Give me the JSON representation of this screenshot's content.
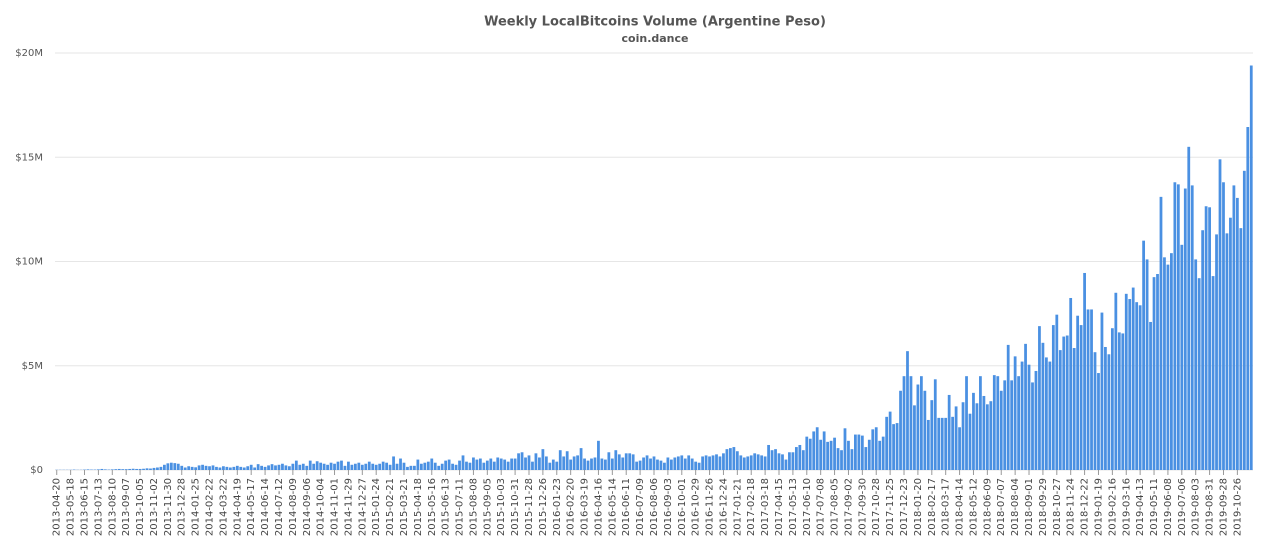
{
  "chart_data": {
    "type": "bar",
    "title": "Weekly LocalBitcoins Volume (Argentine Peso)",
    "subtitle": "coin.dance",
    "categories": [
      "2013-04-20",
      null,
      null,
      null,
      "2013-05-18",
      null,
      null,
      null,
      "2013-06-15",
      null,
      null,
      null,
      "2013-07-13",
      null,
      null,
      null,
      "2013-08-10",
      null,
      null,
      null,
      "2013-09-07",
      null,
      null,
      null,
      "2013-10-05",
      null,
      null,
      null,
      "2013-11-02",
      null,
      null,
      null,
      "2013-11-30",
      null,
      null,
      null,
      "2013-12-28",
      null,
      null,
      null,
      "2014-01-25",
      null,
      null,
      null,
      "2014-02-22",
      null,
      null,
      null,
      "2014-03-22",
      null,
      null,
      null,
      "2014-04-19",
      null,
      null,
      null,
      "2014-05-17",
      null,
      null,
      null,
      "2014-06-14",
      null,
      null,
      null,
      "2014-07-12",
      null,
      null,
      null,
      "2014-08-09",
      null,
      null,
      null,
      "2014-09-06",
      null,
      null,
      null,
      "2014-10-04",
      null,
      null,
      null,
      "2014-11-01",
      null,
      null,
      null,
      "2014-11-29",
      null,
      null,
      null,
      "2014-12-27",
      null,
      null,
      null,
      "2015-01-24",
      null,
      null,
      null,
      "2015-02-21",
      null,
      null,
      null,
      "2015-03-21",
      null,
      null,
      null,
      "2015-04-18",
      null,
      null,
      null,
      "2015-05-16",
      null,
      null,
      null,
      "2015-06-13",
      null,
      null,
      null,
      "2015-07-11",
      null,
      null,
      null,
      "2015-08-08",
      null,
      null,
      null,
      "2015-09-05",
      null,
      null,
      null,
      "2015-10-03",
      null,
      null,
      null,
      "2015-10-31",
      null,
      null,
      null,
      "2015-11-28",
      null,
      null,
      null,
      "2015-12-26",
      null,
      null,
      null,
      "2016-01-23",
      null,
      null,
      null,
      "2016-02-20",
      null,
      null,
      null,
      "2016-03-19",
      null,
      null,
      null,
      "2016-04-16",
      null,
      null,
      null,
      "2016-05-14",
      null,
      null,
      null,
      "2016-06-11",
      null,
      null,
      null,
      "2016-07-09",
      null,
      null,
      null,
      "2016-08-06",
      null,
      null,
      null,
      "2016-09-03",
      null,
      null,
      null,
      "2016-10-01",
      null,
      null,
      null,
      "2016-10-29",
      null,
      null,
      null,
      "2016-11-26",
      null,
      null,
      null,
      "2016-12-24",
      null,
      null,
      null,
      "2017-01-21",
      null,
      null,
      null,
      "2017-02-18",
      null,
      null,
      null,
      "2017-03-18",
      null,
      null,
      null,
      "2017-04-15",
      null,
      null,
      null,
      "2017-05-13",
      null,
      null,
      null,
      "2017-06-10",
      null,
      null,
      null,
      "2017-07-08",
      null,
      null,
      null,
      "2017-08-05",
      null,
      null,
      null,
      "2017-09-02",
      null,
      null,
      null,
      "2017-09-30",
      null,
      null,
      null,
      "2017-10-28",
      null,
      null,
      null,
      "2017-11-25",
      null,
      null,
      null,
      "2017-12-23",
      null,
      null,
      null,
      "2018-01-20",
      null,
      null,
      null,
      "2018-02-17",
      null,
      null,
      null,
      "2018-03-17",
      null,
      null,
      null,
      "2018-04-14",
      null,
      null,
      null,
      "2018-05-12",
      null,
      null,
      null,
      "2018-06-09",
      null,
      null,
      null,
      "2018-07-07",
      null,
      null,
      null,
      "2018-08-04",
      null,
      null,
      null,
      "2018-09-01",
      null,
      null,
      null,
      "2018-09-29",
      null,
      null,
      null,
      "2018-10-27",
      null,
      null,
      null,
      "2018-11-24",
      null,
      null,
      null,
      "2018-12-22",
      null,
      null,
      null,
      "2019-01-19",
      null,
      null,
      null,
      "2019-02-16",
      null,
      null,
      null,
      "2019-03-16",
      null,
      null,
      null,
      "2019-04-13",
      null,
      null,
      null,
      "2019-05-11",
      null,
      null,
      null,
      "2019-06-08",
      null,
      null,
      null,
      "2019-07-06",
      null,
      null,
      null,
      "2019-08-03",
      null,
      null,
      null,
      "2019-08-31",
      null,
      null,
      null,
      "2019-09-28",
      null,
      null,
      null,
      "2019-10-26",
      null,
      null,
      null,
      null
    ],
    "values": [
      10000.0,
      10000.0,
      10000.0,
      10000.0,
      10000.0,
      20000.0,
      10000.0,
      10000.0,
      20000.0,
      30000.0,
      20000.0,
      20000.0,
      30000.0,
      50000.0,
      30000.0,
      20000.0,
      30000.0,
      40000.0,
      50000.0,
      40000.0,
      40000.0,
      50000.0,
      60000.0,
      50000.0,
      50000.0,
      60000.0,
      80000.0,
      70000.0,
      100000.0,
      120000.0,
      150000.0,
      250000.0,
      320000.0,
      350000.0,
      330000.0,
      300000.0,
      200000.0,
      120000.0,
      180000.0,
      150000.0,
      130000.0,
      220000.0,
      250000.0,
      200000.0,
      180000.0,
      220000.0,
      150000.0,
      120000.0,
      180000.0,
      150000.0,
      120000.0,
      150000.0,
      200000.0,
      150000.0,
      120000.0,
      180000.0,
      250000.0,
      120000.0,
      280000.0,
      200000.0,
      150000.0,
      220000.0,
      280000.0,
      220000.0,
      250000.0,
      300000.0,
      220000.0,
      180000.0,
      300000.0,
      450000.0,
      250000.0,
      300000.0,
      200000.0,
      450000.0,
      300000.0,
      420000.0,
      350000.0,
      300000.0,
      250000.0,
      350000.0,
      300000.0,
      400000.0,
      450000.0,
      200000.0,
      400000.0,
      250000.0,
      300000.0,
      350000.0,
      250000.0,
      300000.0,
      400000.0,
      300000.0,
      250000.0,
      300000.0,
      400000.0,
      350000.0,
      250000.0,
      650000.0,
      300000.0,
      550000.0,
      350000.0,
      150000.0,
      200000.0,
      200000.0,
      500000.0,
      300000.0,
      350000.0,
      400000.0,
      550000.0,
      350000.0,
      200000.0,
      300000.0,
      450000.0,
      500000.0,
      300000.0,
      250000.0,
      450000.0,
      700000.0,
      400000.0,
      350000.0,
      600000.0,
      500000.0,
      550000.0,
      350000.0,
      450000.0,
      550000.0,
      400000.0,
      600000.0,
      550000.0,
      500000.0,
      400000.0,
      550000.0,
      550000.0,
      800000.0,
      850000.0,
      600000.0,
      700000.0,
      400000.0,
      800000.0,
      600000.0,
      1000000.0,
      650000.0,
      350000.0,
      500000.0,
      400000.0,
      950000.0,
      650000.0,
      900000.0,
      500000.0,
      650000.0,
      700000.0,
      1050000.0,
      550000.0,
      450000.0,
      550000.0,
      600000.0,
      1400000.0,
      550000.0,
      500000.0,
      850000.0,
      550000.0,
      950000.0,
      750000.0,
      600000.0,
      800000.0,
      800000.0,
      750000.0,
      400000.0,
      450000.0,
      600000.0,
      700000.0,
      550000.0,
      650000.0,
      500000.0,
      450000.0,
      350000.0,
      600000.0,
      500000.0,
      600000.0,
      650000.0,
      700000.0,
      550000.0,
      700000.0,
      550000.0,
      400000.0,
      350000.0,
      650000.0,
      700000.0,
      650000.0,
      700000.0,
      750000.0,
      650000.0,
      800000.0,
      1000000.0,
      1050000.0,
      1100000.0,
      900000.0,
      700000.0,
      600000.0,
      650000.0,
      700000.0,
      800000.0,
      750000.0,
      700000.0,
      650000.0,
      1200000.0,
      950000.0,
      1000000.0,
      800000.0,
      750000.0,
      500000.0,
      850000.0,
      850000.0,
      1100000.0,
      1200000.0,
      950000.0,
      1600000.0,
      1500000.0,
      1850000.0,
      2050000.0,
      1450000.0,
      1850000.0,
      1350000.0,
      1400000.0,
      1550000.0,
      1050000.0,
      950000.0,
      2000000.0,
      1400000.0,
      1000000.0,
      1700000.0,
      1700000.0,
      1650000.0,
      1100000.0,
      1450000.0,
      1950000.0,
      2050000.0,
      1400000.0,
      1600000.0,
      2550000.0,
      2800000.0,
      2200000.0,
      2250000.0,
      3800000.0,
      4500000.0,
      5700000.0,
      4500000.0,
      3100000.0,
      4100000.0,
      4500000.0,
      3800000.0,
      2400000.0,
      3350000.0,
      4350000.0,
      2500000.0,
      2500000.0,
      2500000.0,
      3600000.0,
      2550000.0,
      3050000.0,
      2050000.0,
      3250000.0,
      4500000.0,
      2700000.0,
      3700000.0,
      3200000.0,
      4500000.0,
      3550000.0,
      3150000.0,
      3300000.0,
      4550000.0,
      4500000.0,
      3800000.0,
      4300000.0,
      6000000.0,
      4300000.0,
      5450000.0,
      4500000.0,
      5200000.0,
      6050000.0,
      5050000.0,
      4200000.0,
      4750000.0,
      6900000.0,
      6100000.0,
      5400000.0,
      5200000.0,
      6950000.0,
      7450000.0,
      5750000.0,
      6400000.0,
      6450000.0,
      8250000.0,
      5850000.0,
      7400000.0,
      6950000.0,
      9450000.0,
      7700000.0,
      7700000.0,
      5650000.0,
      4650000.0,
      7550000.0,
      5900000.0,
      5550000.0,
      6800000.0,
      8500000.0,
      6600000.0,
      6550000.0,
      8450000.0,
      8200000.0,
      8750000.0,
      8050000.0,
      7900000.0,
      11000000.0,
      10100000.0,
      7100000.0,
      9250000.0,
      9400000.0,
      13100000.0,
      10200000.0,
      9850000.0,
      10400000.0,
      13800000.0,
      13700000.0,
      10800000.0,
      13500000.0,
      15500000.0,
      13650000.0,
      10100000.0,
      9200000.0,
      11500000.0,
      12650000.0,
      12600000.0,
      9300000.0,
      11300000.0,
      14900000.0,
      13800000.0,
      11350000.0,
      12100000.0,
      13650000.0,
      13050000.0,
      11600000.0,
      14350000.0,
      16450000.0,
      19400000.0
    ],
    "color": "#4a90e2",
    "ylim": [
      0,
      20000000
    ],
    "yticks": [
      {
        "value": 0,
        "label": "$0"
      },
      {
        "value": 5000000,
        "label": "$5M"
      },
      {
        "value": 10000000,
        "label": "$10M"
      },
      {
        "value": 15000000,
        "label": "$15M"
      },
      {
        "value": 20000000,
        "label": "$20M"
      }
    ],
    "grid": true
  }
}
